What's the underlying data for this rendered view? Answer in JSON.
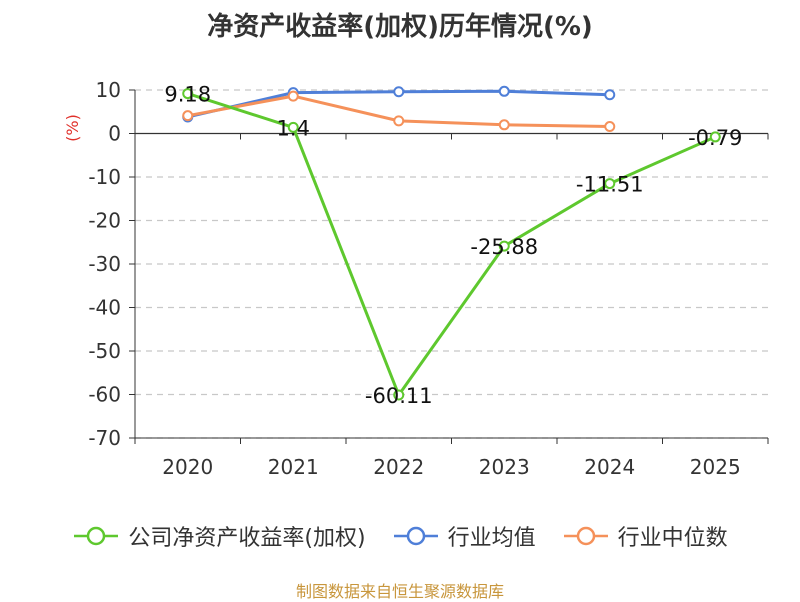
{
  "chart_data": {
    "type": "line",
    "title": "净资产收益率(加权)历年情况(%)",
    "ylabel": "(%)",
    "categories": [
      "2020",
      "2021",
      "2022",
      "2023",
      "2024",
      "2025"
    ],
    "ylim": [
      -70,
      10
    ],
    "yticks": [
      10,
      0,
      -10,
      -20,
      -30,
      -40,
      -50,
      -60,
      -70
    ],
    "grid": true,
    "legend_position": "bottom",
    "series": [
      {
        "name": "公司净资产收益率(加权)",
        "color": "#5ec82e",
        "values": [
          9.18,
          1.4,
          -60.11,
          -25.88,
          -11.51,
          -0.79
        ],
        "labels": [
          "9.18",
          "1.4",
          "-60.11",
          "-25.88",
          "-11.51",
          "-0.79"
        ]
      },
      {
        "name": "行业均值",
        "color": "#4f7fd8",
        "values": [
          3.8,
          9.4,
          9.6,
          9.7,
          8.9,
          null
        ]
      },
      {
        "name": "行业中位数",
        "color": "#f5915a",
        "values": [
          4.1,
          8.6,
          2.9,
          2.0,
          1.6,
          null
        ]
      }
    ]
  },
  "footer": {
    "source": "制图数据来自恒生聚源数据库"
  }
}
